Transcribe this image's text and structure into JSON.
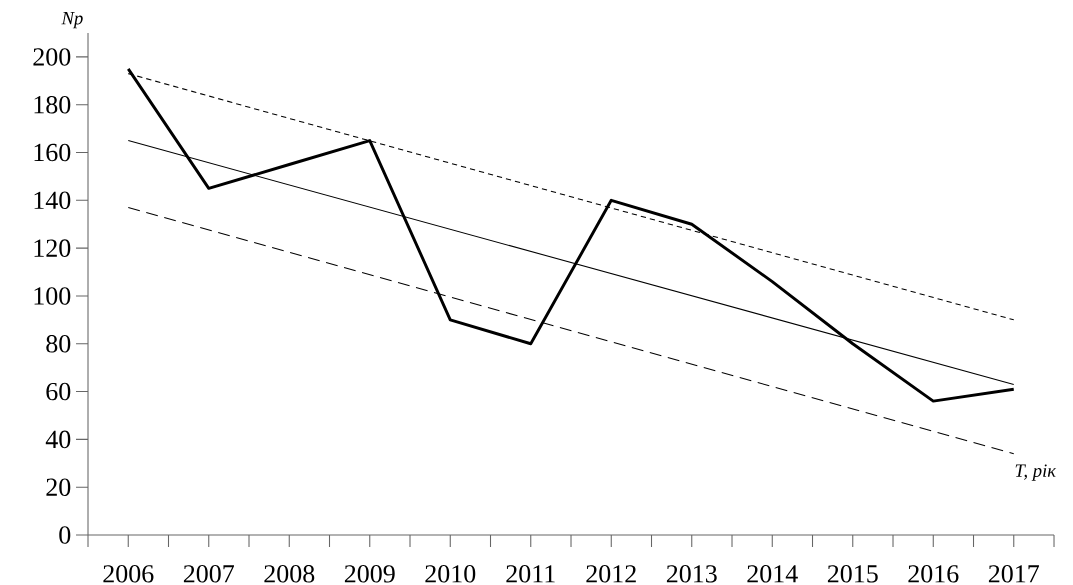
{
  "chart_data": {
    "type": "line",
    "xlabel": "T, рік",
    "ylabel": "Np",
    "categories": [
      "2006",
      "2007",
      "2008",
      "2009",
      "2010",
      "2011",
      "2012",
      "2013",
      "2014",
      "2015",
      "2016",
      "2017"
    ],
    "ylim": [
      0,
      210
    ],
    "yticks": [
      0,
      20,
      40,
      60,
      80,
      100,
      120,
      140,
      160,
      180,
      200
    ],
    "marker": "none",
    "series": [
      {
        "color": "#000000",
        "line_style": "solid",
        "values": [
          195,
          145,
          155,
          165,
          90,
          80,
          140,
          130,
          106,
          80,
          56,
          61
        ]
      },
      {
        "color": "#000000",
        "line_style": "solid",
        "values": [
          165,
          null,
          null,
          null,
          null,
          null,
          null,
          null,
          null,
          null,
          null,
          63
        ]
      },
      {
        "color": "#000000",
        "line_style": "dotted",
        "values": [
          193,
          null,
          null,
          null,
          null,
          null,
          null,
          null,
          null,
          null,
          null,
          90
        ]
      },
      {
        "color": "#000000",
        "line_style": "dashed",
        "values": [
          137,
          null,
          null,
          null,
          null,
          null,
          null,
          null,
          null,
          null,
          null,
          34
        ]
      }
    ]
  }
}
